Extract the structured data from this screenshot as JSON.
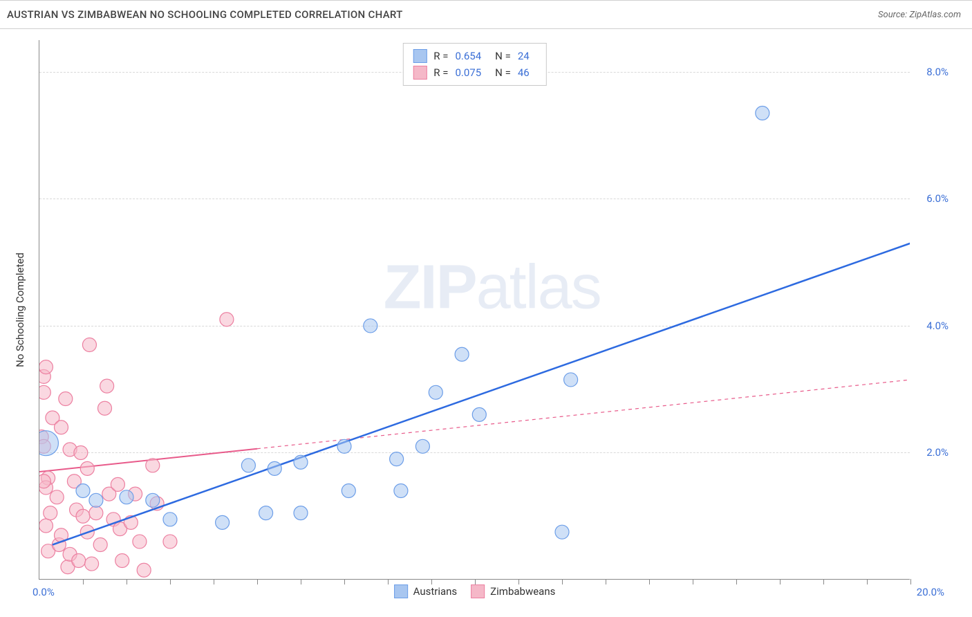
{
  "title": "AUSTRIAN VS ZIMBABWEAN NO SCHOOLING COMPLETED CORRELATION CHART",
  "source_label": "Source: ",
  "source_name": "ZipAtlas.com",
  "y_axis_label": "No Schooling Completed",
  "watermark_bold": "ZIP",
  "watermark_light": "atlas",
  "chart": {
    "type": "scatter",
    "xlim": [
      0,
      20
    ],
    "ylim": [
      0,
      8.5
    ],
    "x_origin_label": "0.0%",
    "x_max_label": "20.0%",
    "y_ticks": [
      2.0,
      4.0,
      6.0,
      8.0
    ],
    "y_tick_labels": [
      "2.0%",
      "4.0%",
      "6.0%",
      "8.0%"
    ],
    "x_minor_ticks": [
      1,
      2,
      3,
      4,
      5,
      6,
      7,
      8,
      9,
      10,
      11,
      12,
      13,
      14,
      15,
      16,
      17,
      18,
      19,
      20
    ],
    "background_color": "#ffffff",
    "grid_color": "#d8d8d8",
    "series": [
      {
        "name": "Austrians",
        "color_fill": "#a8c6f0",
        "color_stroke": "#6b9de8",
        "trend_color": "#2d6ae0",
        "trend_width": 2.5,
        "trend_dash": "none",
        "trend_from": [
          0.3,
          0.55
        ],
        "trend_to": [
          20.0,
          5.3
        ],
        "marker_r": 10,
        "points": [
          [
            0.15,
            2.15,
            18
          ],
          [
            1.0,
            1.4
          ],
          [
            1.3,
            1.25
          ],
          [
            2.0,
            1.3
          ],
          [
            2.6,
            1.25
          ],
          [
            3.0,
            0.95
          ],
          [
            4.2,
            0.9
          ],
          [
            4.8,
            1.8
          ],
          [
            5.2,
            1.05
          ],
          [
            5.4,
            1.75
          ],
          [
            6.0,
            1.85
          ],
          [
            6.0,
            1.05
          ],
          [
            7.0,
            2.1
          ],
          [
            7.1,
            1.4
          ],
          [
            7.6,
            4.0
          ],
          [
            8.2,
            1.9
          ],
          [
            8.3,
            1.4
          ],
          [
            8.8,
            2.1
          ],
          [
            9.1,
            2.95
          ],
          [
            9.7,
            3.55
          ],
          [
            10.1,
            2.6
          ],
          [
            12.0,
            0.75
          ],
          [
            12.2,
            3.15
          ],
          [
            16.6,
            7.35
          ]
        ],
        "R_label": "R = ",
        "R_value": "0.654",
        "N_label": "N = ",
        "N_value": "24"
      },
      {
        "name": "Zimbabweans",
        "color_fill": "#f5b8c8",
        "color_stroke": "#ec7fa0",
        "trend_color": "#e85a8a",
        "trend_width": 2,
        "trend_dash": "solid_then_dash",
        "trend_solid_to_x": 5.0,
        "trend_from": [
          0.0,
          1.7
        ],
        "trend_to": [
          20.0,
          3.15
        ],
        "marker_r": 10,
        "points": [
          [
            0.1,
            3.2
          ],
          [
            0.1,
            2.95
          ],
          [
            0.15,
            3.35
          ],
          [
            0.05,
            2.25
          ],
          [
            0.1,
            2.1
          ],
          [
            0.2,
            1.6
          ],
          [
            0.15,
            1.45
          ],
          [
            0.1,
            1.55
          ],
          [
            0.15,
            0.85
          ],
          [
            0.2,
            0.45
          ],
          [
            0.25,
            1.05
          ],
          [
            0.3,
            2.55
          ],
          [
            0.4,
            1.3
          ],
          [
            0.45,
            0.55
          ],
          [
            0.5,
            2.4
          ],
          [
            0.5,
            0.7
          ],
          [
            0.6,
            2.85
          ],
          [
            0.65,
            0.2
          ],
          [
            0.7,
            2.05
          ],
          [
            0.7,
            0.4
          ],
          [
            0.8,
            1.55
          ],
          [
            0.85,
            1.1
          ],
          [
            0.9,
            0.3
          ],
          [
            0.95,
            2.0
          ],
          [
            1.0,
            1.0
          ],
          [
            1.1,
            1.75
          ],
          [
            1.1,
            0.75
          ],
          [
            1.15,
            3.7
          ],
          [
            1.2,
            0.25
          ],
          [
            1.3,
            1.05
          ],
          [
            1.4,
            0.55
          ],
          [
            1.5,
            2.7
          ],
          [
            1.55,
            3.05
          ],
          [
            1.6,
            1.35
          ],
          [
            1.7,
            0.95
          ],
          [
            1.8,
            1.5
          ],
          [
            1.85,
            0.8
          ],
          [
            1.9,
            0.3
          ],
          [
            2.1,
            0.9
          ],
          [
            2.2,
            1.35
          ],
          [
            2.3,
            0.6
          ],
          [
            2.4,
            0.15
          ],
          [
            2.6,
            1.8
          ],
          [
            2.7,
            1.2
          ],
          [
            3.0,
            0.6
          ],
          [
            4.3,
            4.1
          ]
        ],
        "R_label": "R = ",
        "R_value": "0.075",
        "N_label": "N = ",
        "N_value": "46"
      }
    ]
  },
  "legend_bottom": [
    {
      "label": "Austrians",
      "fill": "#a8c6f0",
      "stroke": "#6b9de8"
    },
    {
      "label": "Zimbabweans",
      "fill": "#f5b8c8",
      "stroke": "#ec7fa0"
    }
  ]
}
